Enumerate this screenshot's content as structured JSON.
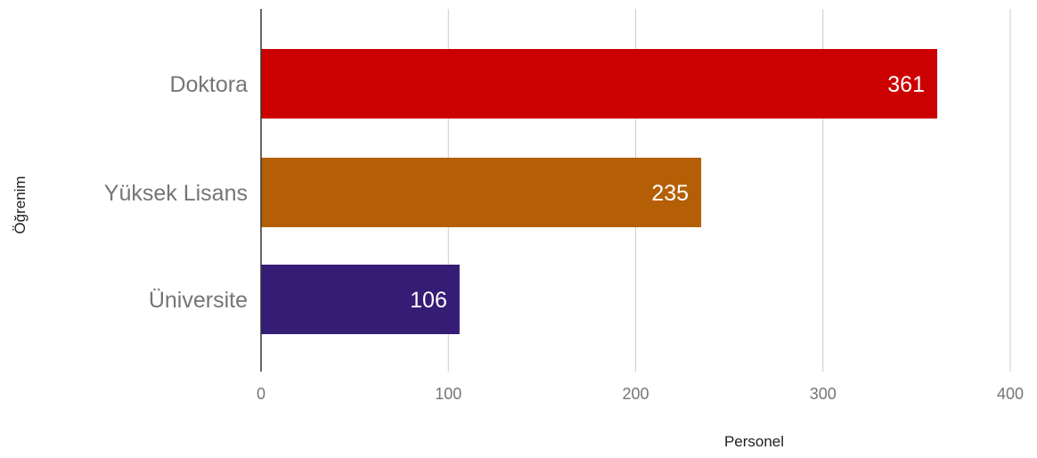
{
  "chart_data": {
    "type": "bar",
    "orientation": "horizontal",
    "categories": [
      "Doktora",
      "Yüksek Lisans",
      "Üniversite"
    ],
    "values": [
      361,
      235,
      106
    ],
    "data_labels": [
      "361",
      "235",
      "106"
    ],
    "colors": [
      "#cc0000",
      "#b45f06",
      "#351c75"
    ],
    "xlabel": "Personel",
    "ylabel": "Öğrenim",
    "xlim": [
      0,
      400
    ],
    "xticks": [
      0,
      100,
      200,
      300,
      400
    ],
    "xtick_labels": [
      "0",
      "100",
      "200",
      "300",
      "400"
    ],
    "grid": true,
    "legend": "none"
  }
}
